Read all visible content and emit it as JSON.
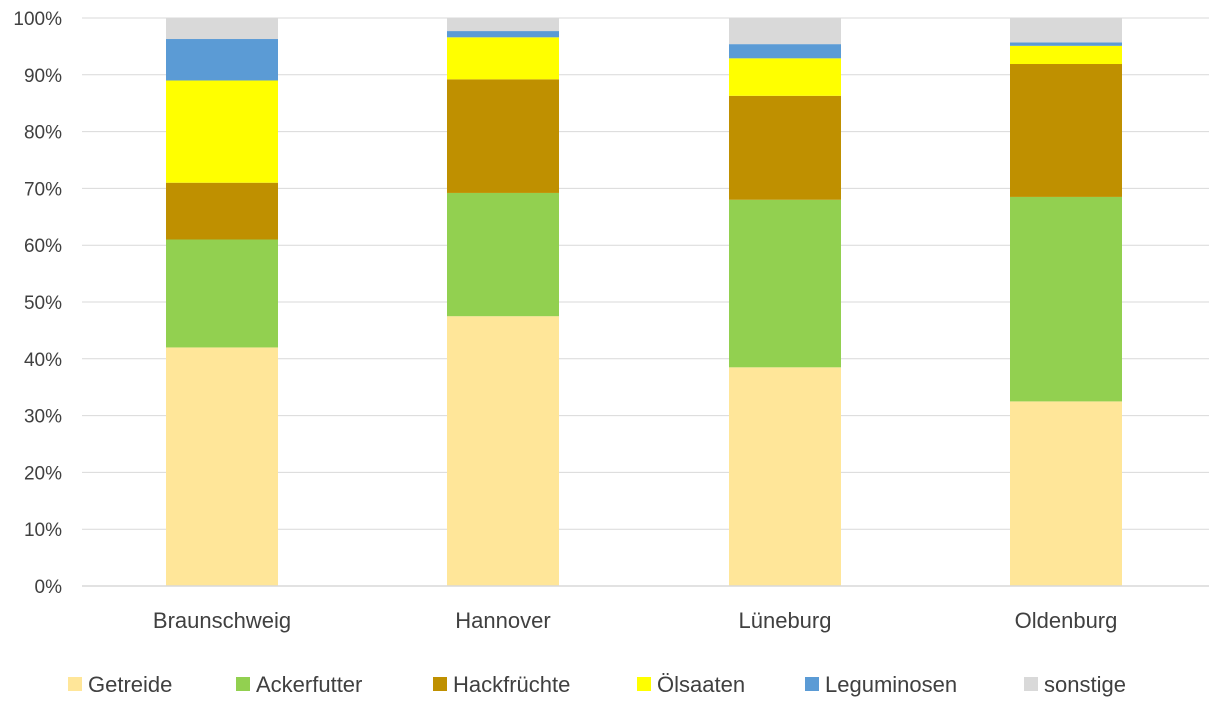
{
  "chart_data": {
    "type": "bar",
    "stacked": true,
    "percent": true,
    "categories": [
      "Braunschweig",
      "Hannover",
      "Lüneburg",
      "Oldenburg"
    ],
    "series": [
      {
        "name": "Getreide",
        "color": "#FFE699",
        "values": [
          42.0,
          47.5,
          38.5,
          32.5
        ]
      },
      {
        "name": "Ackerfutter",
        "color": "#92D050",
        "values": [
          19.0,
          21.7,
          29.5,
          36.0
        ]
      },
      {
        "name": "Hackfrüchte",
        "color": "#BF9000",
        "values": [
          10.0,
          20.0,
          18.3,
          23.4
        ]
      },
      {
        "name": "Ölsaaten",
        "color": "#FFFF00",
        "values": [
          18.0,
          7.4,
          6.6,
          3.2
        ]
      },
      {
        "name": "Leguminosen",
        "color": "#5B9BD5",
        "values": [
          7.3,
          1.1,
          2.5,
          0.6
        ]
      },
      {
        "name": "sonstige",
        "color": "#D9D9D9",
        "values": [
          3.7,
          2.3,
          4.6,
          4.3
        ]
      }
    ],
    "y_ticks": [
      "0%",
      "10%",
      "20%",
      "30%",
      "40%",
      "50%",
      "60%",
      "70%",
      "80%",
      "90%",
      "100%"
    ],
    "ylim": [
      0,
      100
    ],
    "grid": true,
    "legend_position": "bottom"
  }
}
